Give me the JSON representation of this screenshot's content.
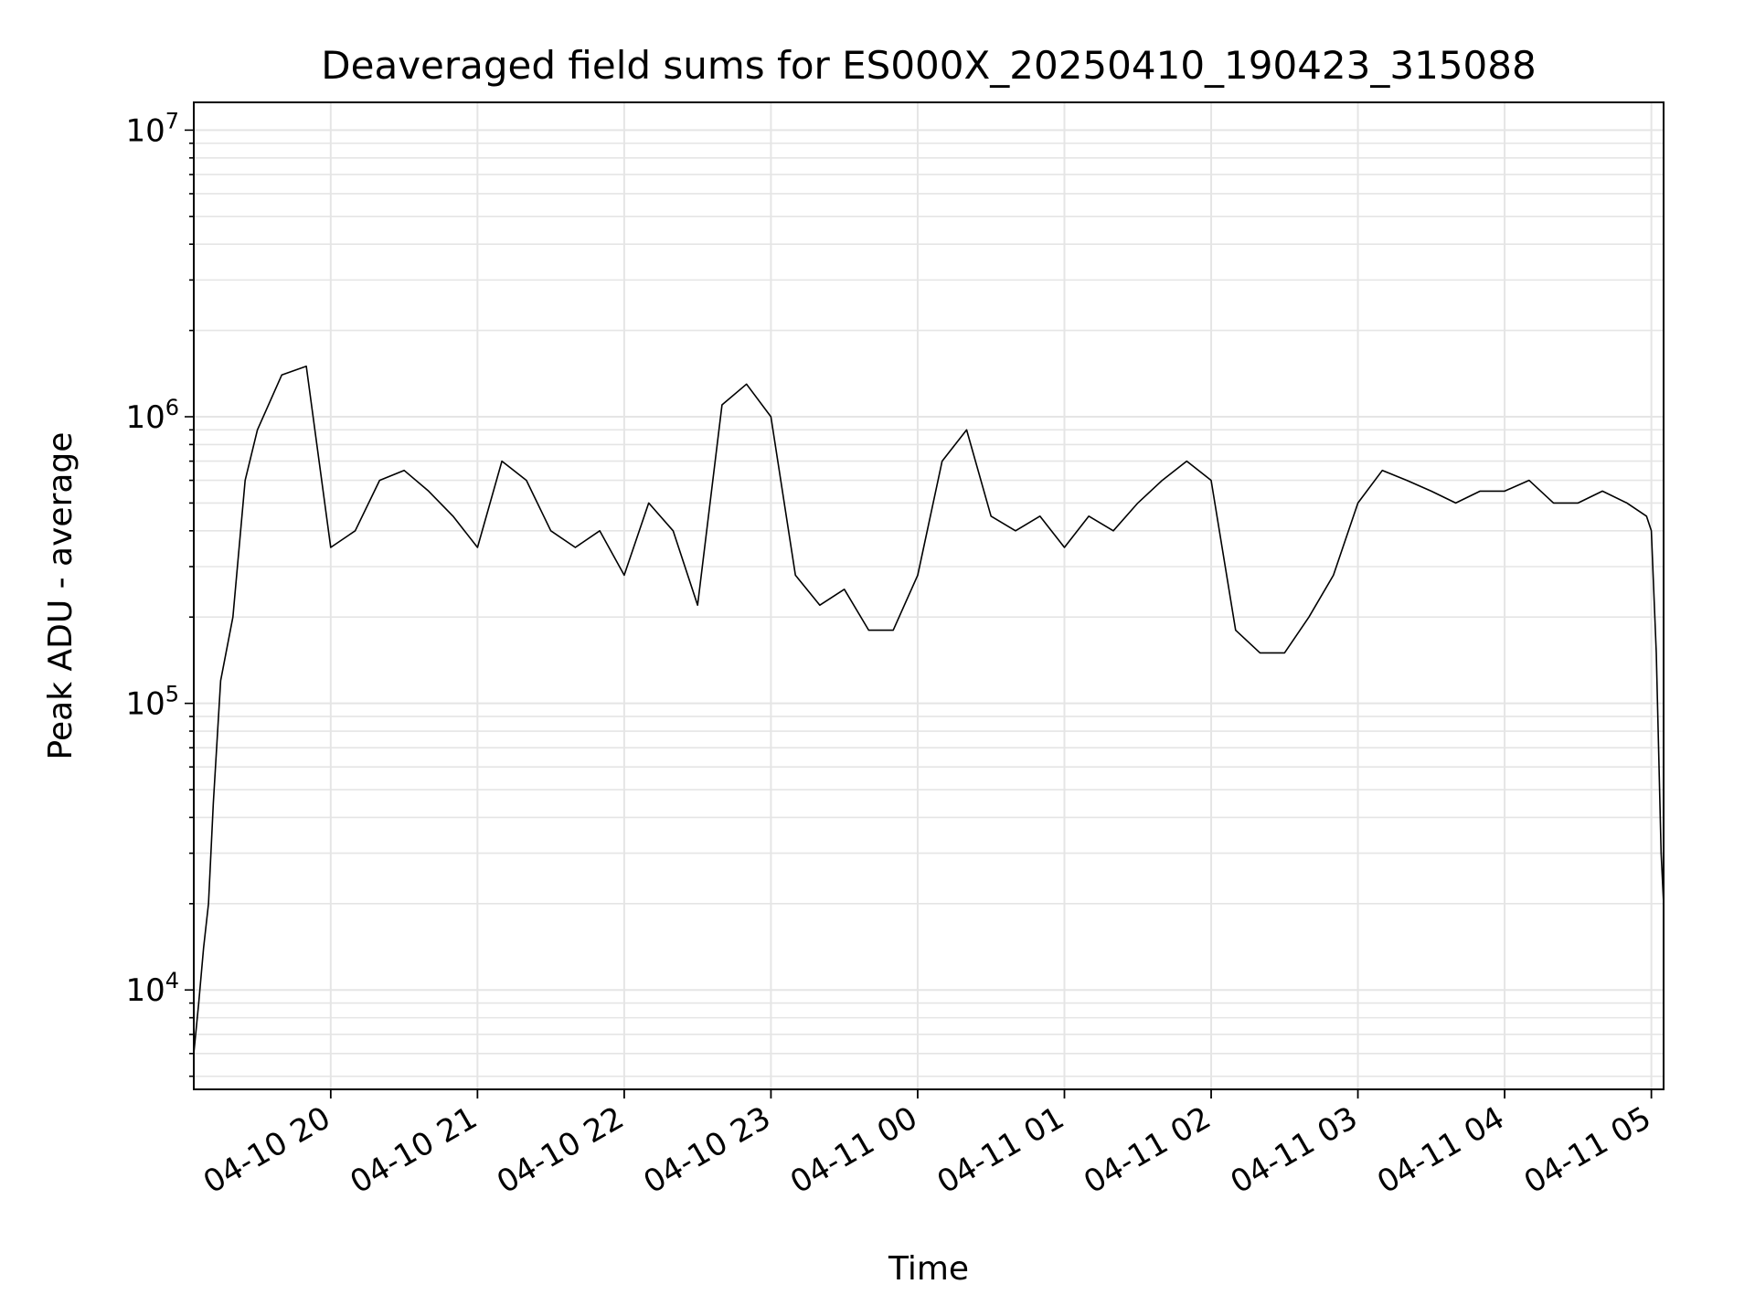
{
  "chart_data": {
    "type": "line",
    "title": "Deaveraged field sums for ES000X_20250410_190423_315088",
    "xlabel": "Time",
    "ylabel": "Peak ADU - average",
    "yscale": "log",
    "ylim": [
      4500,
      12500000
    ],
    "xlim": [
      "2025-04-10 19:04",
      "2025-04-11 05:05"
    ],
    "grid": true,
    "line_color": "#000000",
    "grid_color": "#e5e5e5",
    "y_ticks": [
      {
        "base": "10",
        "exp": "4",
        "value": 10000
      },
      {
        "base": "10",
        "exp": "5",
        "value": 100000
      },
      {
        "base": "10",
        "exp": "6",
        "value": 1000000
      },
      {
        "base": "10",
        "exp": "7",
        "value": 10000000
      }
    ],
    "x_ticks": [
      {
        "label": "04-10 20",
        "time": "2025-04-10 20:00"
      },
      {
        "label": "04-10 21",
        "time": "2025-04-10 21:00"
      },
      {
        "label": "04-10 22",
        "time": "2025-04-10 22:00"
      },
      {
        "label": "04-10 23",
        "time": "2025-04-10 23:00"
      },
      {
        "label": "04-11 00",
        "time": "2025-04-11 00:00"
      },
      {
        "label": "04-11 01",
        "time": "2025-04-11 01:00"
      },
      {
        "label": "04-11 02",
        "time": "2025-04-11 02:00"
      },
      {
        "label": "04-11 03",
        "time": "2025-04-11 03:00"
      },
      {
        "label": "04-11 04",
        "time": "2025-04-11 04:00"
      },
      {
        "label": "04-11 05",
        "time": "2025-04-11 05:00"
      }
    ],
    "series": [
      {
        "x": [
          "2025-04-10 19:04",
          "2025-04-10 19:06",
          "2025-04-10 19:08",
          "2025-04-10 19:10",
          "2025-04-10 19:12",
          "2025-04-10 19:15",
          "2025-04-10 19:20",
          "2025-04-10 19:25",
          "2025-04-10 19:30",
          "2025-04-10 19:40",
          "2025-04-10 19:50",
          "2025-04-10 20:00",
          "2025-04-10 20:10",
          "2025-04-10 20:20",
          "2025-04-10 20:30",
          "2025-04-10 20:40",
          "2025-04-10 20:50",
          "2025-04-10 21:00",
          "2025-04-10 21:10",
          "2025-04-10 21:20",
          "2025-04-10 21:30",
          "2025-04-10 21:40",
          "2025-04-10 21:50",
          "2025-04-10 22:00",
          "2025-04-10 22:10",
          "2025-04-10 22:20",
          "2025-04-10 22:30",
          "2025-04-10 22:40",
          "2025-04-10 22:50",
          "2025-04-10 23:00",
          "2025-04-10 23:10",
          "2025-04-10 23:20",
          "2025-04-10 23:30",
          "2025-04-10 23:40",
          "2025-04-10 23:50",
          "2025-04-11 00:00",
          "2025-04-11 00:10",
          "2025-04-11 00:20",
          "2025-04-11 00:30",
          "2025-04-11 00:40",
          "2025-04-11 00:50",
          "2025-04-11 01:00",
          "2025-04-11 01:10",
          "2025-04-11 01:20",
          "2025-04-11 01:30",
          "2025-04-11 01:40",
          "2025-04-11 01:50",
          "2025-04-11 02:00",
          "2025-04-11 02:10",
          "2025-04-11 02:20",
          "2025-04-11 02:30",
          "2025-04-11 02:40",
          "2025-04-11 02:50",
          "2025-04-11 03:00",
          "2025-04-11 03:10",
          "2025-04-11 03:20",
          "2025-04-11 03:30",
          "2025-04-11 03:40",
          "2025-04-11 03:50",
          "2025-04-11 04:00",
          "2025-04-11 04:10",
          "2025-04-11 04:20",
          "2025-04-11 04:30",
          "2025-04-11 04:40",
          "2025-04-11 04:50",
          "2025-04-11 04:58",
          "2025-04-11 05:00",
          "2025-04-11 05:02",
          "2025-04-11 05:04",
          "2025-04-11 05:05"
        ],
        "values": [
          6000,
          9000,
          14000,
          20000,
          45000,
          120000,
          200000,
          600000,
          900000,
          1400000,
          1500000,
          350000,
          400000,
          600000,
          650000,
          550000,
          450000,
          350000,
          700000,
          600000,
          400000,
          350000,
          400000,
          280000,
          500000,
          400000,
          220000,
          1100000,
          1300000,
          1000000,
          280000,
          220000,
          250000,
          180000,
          180000,
          280000,
          700000,
          900000,
          450000,
          400000,
          450000,
          350000,
          450000,
          400000,
          500000,
          600000,
          700000,
          600000,
          180000,
          150000,
          150000,
          200000,
          280000,
          500000,
          650000,
          600000,
          550000,
          500000,
          550000,
          550000,
          600000,
          500000,
          500000,
          550000,
          500000,
          450000,
          400000,
          150000,
          30000,
          20000
        ]
      }
    ]
  }
}
